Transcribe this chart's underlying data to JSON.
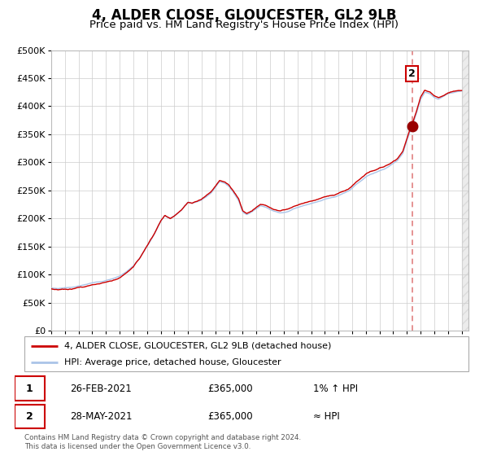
{
  "title": "4, ALDER CLOSE, GLOUCESTER, GL2 9LB",
  "subtitle": "Price paid vs. HM Land Registry's House Price Index (HPI)",
  "title_fontsize": 12,
  "subtitle_fontsize": 9.5,
  "ylim": [
    0,
    500000
  ],
  "yticks": [
    0,
    50000,
    100000,
    150000,
    200000,
    250000,
    300000,
    350000,
    400000,
    450000,
    500000
  ],
  "ytick_labels": [
    "£0",
    "£50K",
    "£100K",
    "£150K",
    "£200K",
    "£250K",
    "£300K",
    "£350K",
    "£400K",
    "£450K",
    "£500K"
  ],
  "xlim_start": 1995.0,
  "xlim_end": 2025.5,
  "xticks": [
    1995,
    1996,
    1997,
    1998,
    1999,
    2000,
    2001,
    2002,
    2003,
    2004,
    2005,
    2006,
    2007,
    2008,
    2009,
    2010,
    2011,
    2012,
    2013,
    2014,
    2015,
    2016,
    2017,
    2018,
    2019,
    2020,
    2021,
    2022,
    2023,
    2024,
    2025
  ],
  "hpi_color": "#aac4e8",
  "price_color": "#cc0000",
  "marker_color": "#990000",
  "vline_color": "#e08080",
  "vline_x": 2021.38,
  "marker2_x": 2021.38,
  "marker2_y": 365000,
  "background_color": "#ffffff",
  "grid_color": "#cccccc",
  "legend_line1": "4, ALDER CLOSE, GLOUCESTER, GL2 9LB (detached house)",
  "legend_line2": "HPI: Average price, detached house, Gloucester",
  "table_row1": [
    "1",
    "26-FEB-2021",
    "£365,000",
    "1% ↑ HPI"
  ],
  "table_row2": [
    "2",
    "28-MAY-2021",
    "£365,000",
    "≈ HPI"
  ],
  "footer": "Contains HM Land Registry data © Crown copyright and database right 2024.\nThis data is licensed under the Open Government Licence v3.0."
}
